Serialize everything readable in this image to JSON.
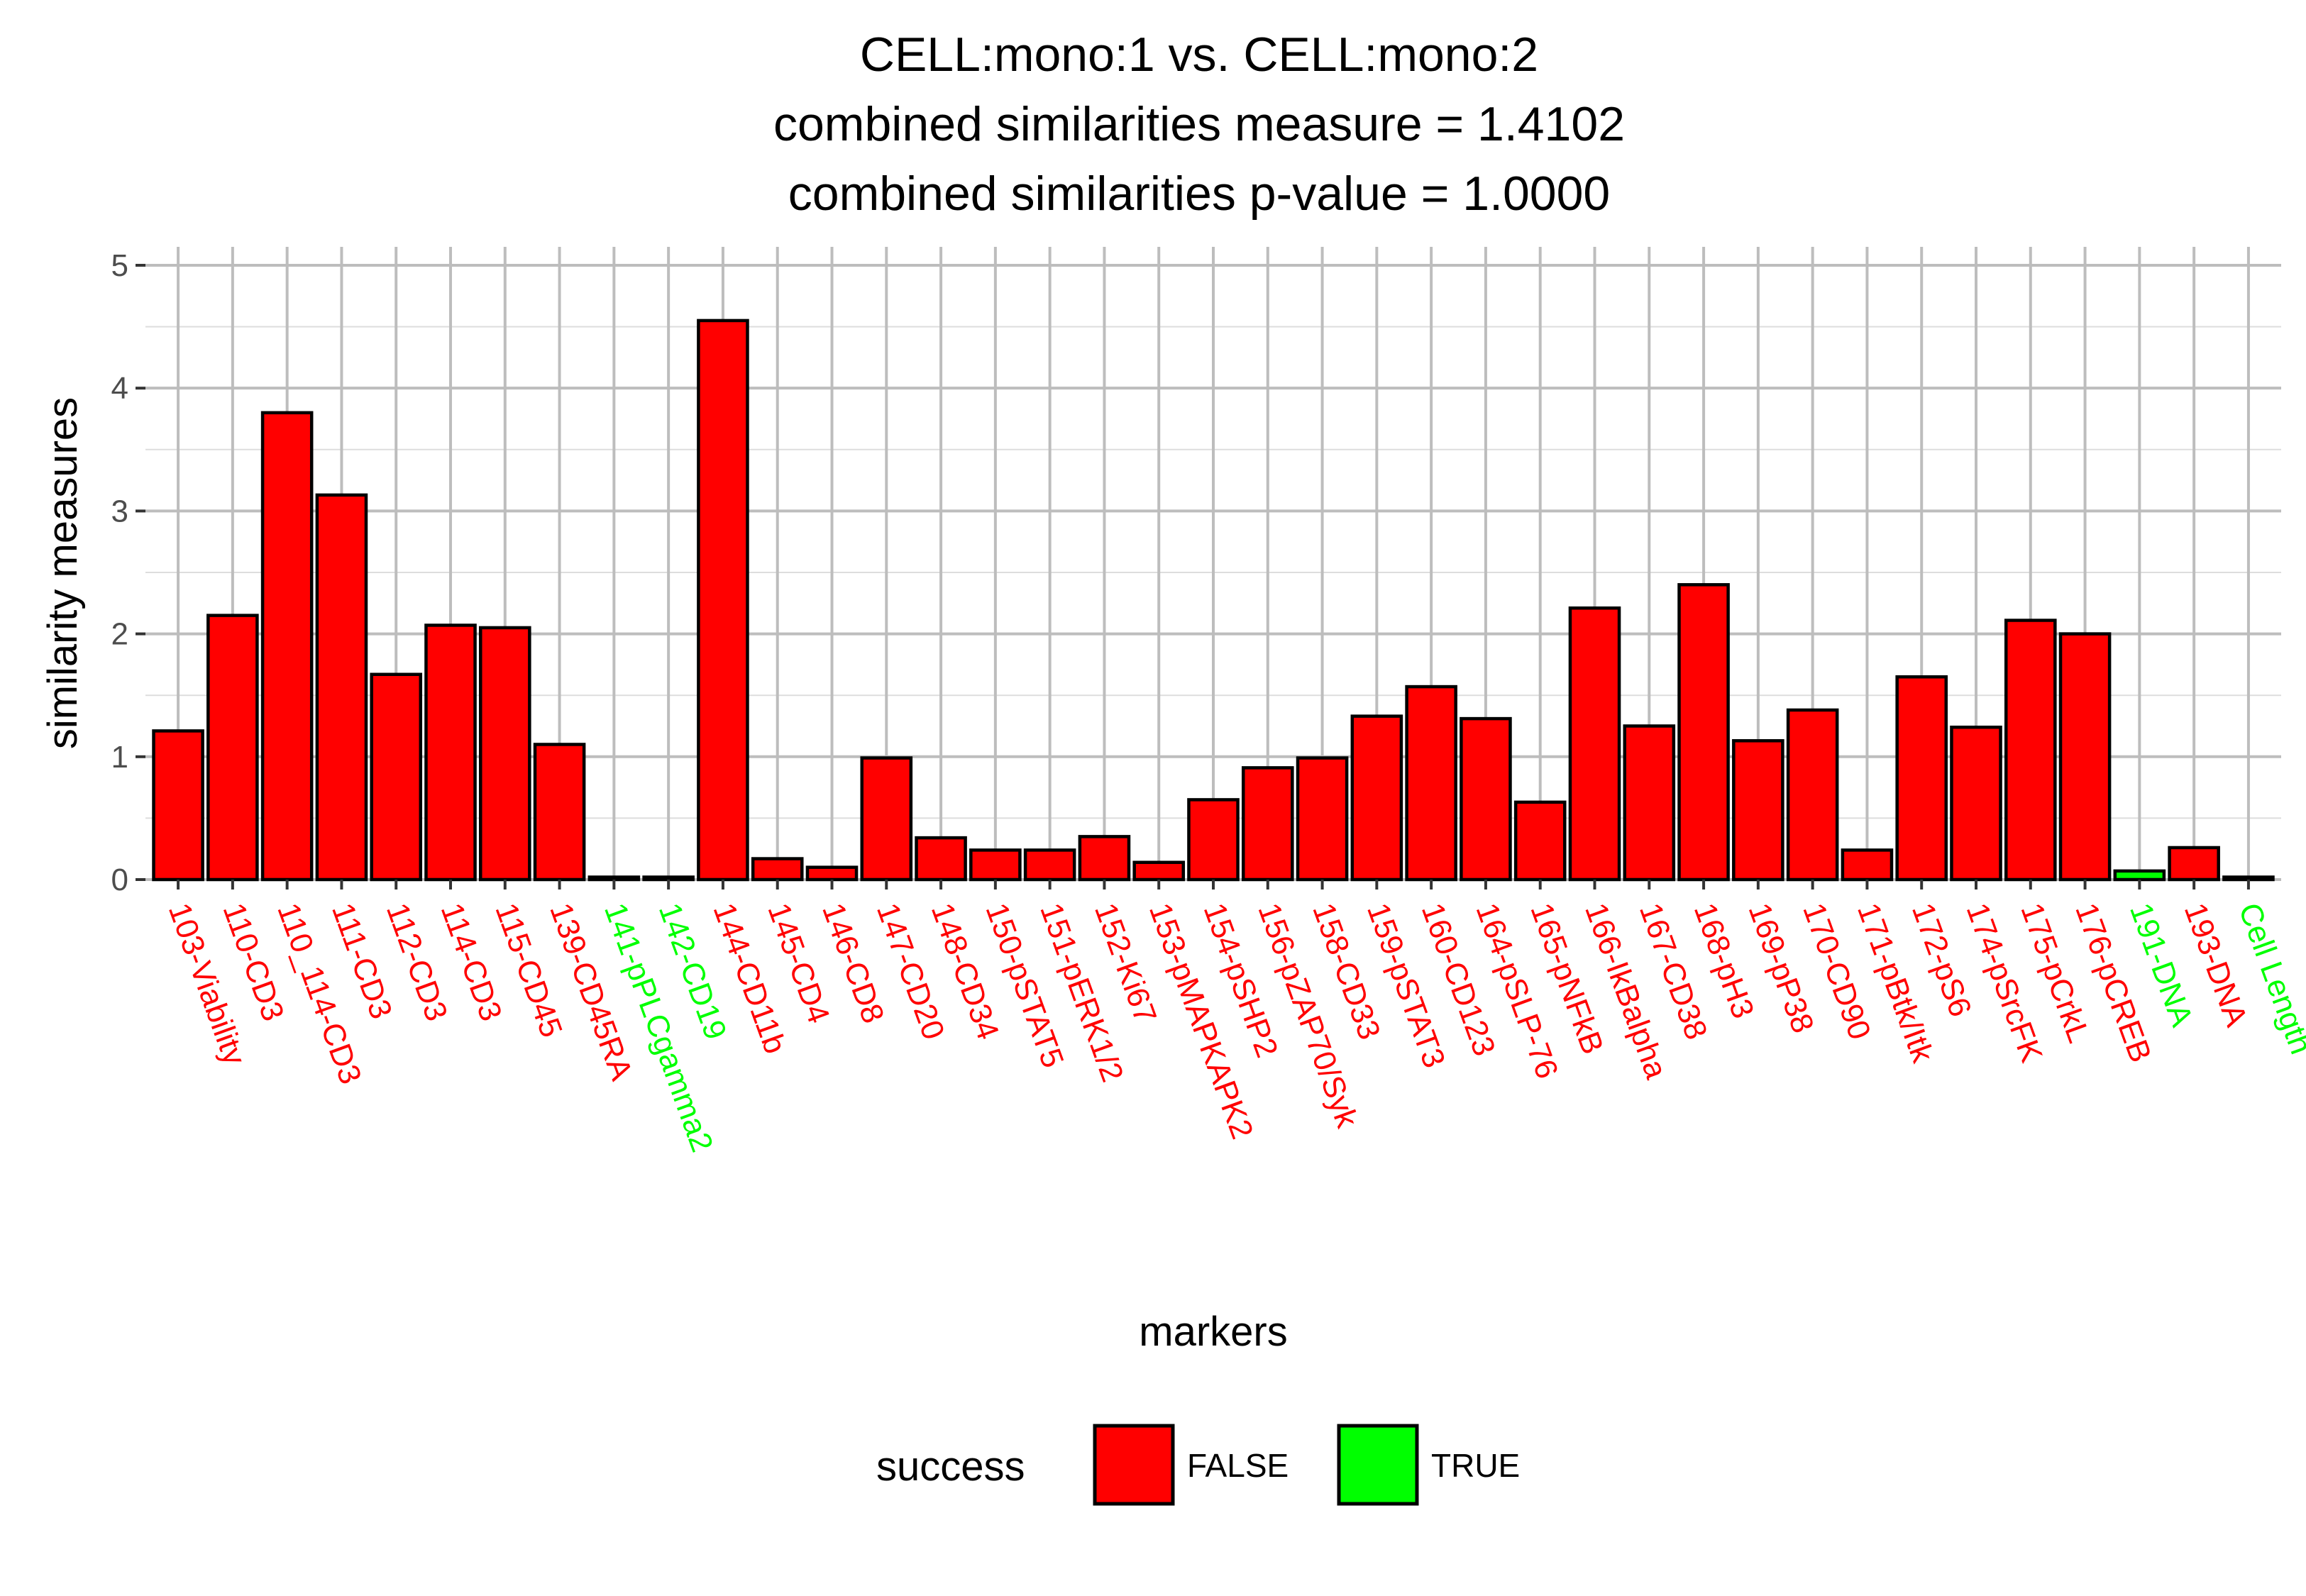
{
  "chart_data": {
    "type": "bar",
    "title_lines": [
      "CELL:mono:1  vs.  CELL:mono:2",
      "combined similarities measure =  1.4102",
      "combined similarities p-value =  1.0000"
    ],
    "xlabel": "markers",
    "ylabel": "similarity measures",
    "ylim": [
      0,
      5.15
    ],
    "yticks": [
      0,
      1,
      2,
      3,
      4,
      5
    ],
    "grid": true,
    "categories": [
      "103-Viability",
      "110-CD3",
      "110_114-CD3",
      "111-CD3",
      "112-CD3",
      "114-CD3",
      "115-CD45",
      "139-CD45RA",
      "141-pPLCgamma2",
      "142-CD19",
      "144-CD11b",
      "145-CD4",
      "146-CD8",
      "147-CD20",
      "148-CD34",
      "150-pSTAT5",
      "151-pERK1/2",
      "152-Ki67",
      "153-pMAPKAPK2",
      "154-pSHP2",
      "156-pZAP70/Syk",
      "158-CD33",
      "159-pSTAT3",
      "160-CD123",
      "164-pSLP-76",
      "165-pNFkB",
      "166-IkBalpha",
      "167-CD38",
      "168-pH3",
      "169-pP38",
      "170-CD90",
      "171-pBtk/Itk",
      "172-pS6",
      "174-pSrcFK",
      "175-pCrkL",
      "176-pCREB",
      "191-DNA",
      "193-DNA",
      "Cell Length"
    ],
    "values": [
      1.21,
      2.15,
      3.8,
      3.13,
      1.67,
      2.07,
      2.05,
      1.1,
      0.02,
      0.02,
      4.55,
      0.17,
      0.1,
      0.99,
      0.34,
      0.24,
      0.24,
      0.35,
      0.14,
      0.65,
      0.91,
      0.99,
      1.33,
      1.57,
      1.31,
      0.63,
      2.21,
      1.25,
      2.4,
      1.13,
      1.38,
      0.24,
      1.65,
      1.24,
      2.11,
      2.0,
      0.07,
      0.26,
      0.02
    ],
    "success": [
      false,
      false,
      false,
      false,
      false,
      false,
      false,
      false,
      true,
      true,
      false,
      false,
      false,
      false,
      false,
      false,
      false,
      false,
      false,
      false,
      false,
      false,
      false,
      false,
      false,
      false,
      false,
      false,
      false,
      false,
      false,
      false,
      false,
      false,
      false,
      false,
      true,
      false,
      true
    ],
    "legend": {
      "title": "success",
      "placement": "bottom",
      "entries": [
        {
          "label": "FALSE",
          "color": "#FF0000"
        },
        {
          "label": "TRUE",
          "color": "#00FF00"
        }
      ]
    }
  },
  "colors": {
    "false": "#FF0000",
    "true": "#00FF00",
    "bar_outline": "#000000",
    "grid": "#bdbdbd",
    "tick_text": "#4d4d4d"
  }
}
